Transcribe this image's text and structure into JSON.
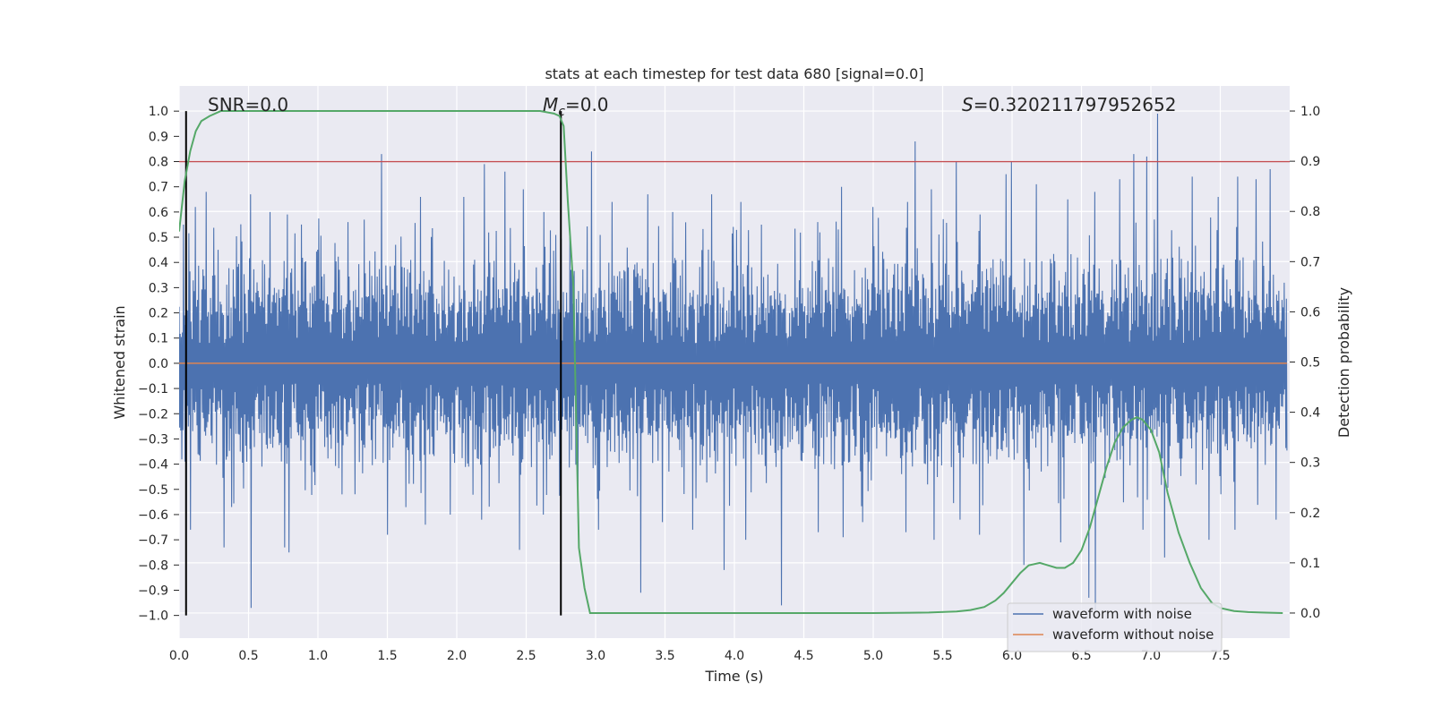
{
  "chart_data": {
    "type": "line",
    "title": "stats at each timestep for test data 680 [signal=0.0]",
    "xlabel": "Time (s)",
    "ylabel_left": "Whitened strain",
    "ylabel_right": "Detection probability",
    "xlim": [
      0.0,
      8.0
    ],
    "ylim_left": [
      -1.09,
      1.1
    ],
    "ylim_right": [
      -0.05,
      1.05
    ],
    "x_ticks": [
      "0.0",
      "0.5",
      "1.0",
      "1.5",
      "2.0",
      "2.5",
      "3.0",
      "3.5",
      "4.0",
      "4.5",
      "5.0",
      "5.5",
      "6.0",
      "6.5",
      "7.0",
      "7.5"
    ],
    "y_left_ticks": [
      "1.0",
      "0.9",
      "0.8",
      "0.7",
      "0.6",
      "0.5",
      "0.4",
      "0.3",
      "0.2",
      "0.1",
      "0.0",
      "−0.1",
      "−0.2",
      "−0.3",
      "−0.4",
      "−0.5",
      "−0.6",
      "−0.7",
      "−0.8",
      "−0.9",
      "−1.0"
    ],
    "y_right_ticks": [
      "1.0",
      "0.9",
      "0.8",
      "0.7",
      "0.6",
      "0.5",
      "0.4",
      "0.3",
      "0.2",
      "0.1",
      "0.0"
    ],
    "annotations": {
      "snr": "SNR=0.0",
      "mc_symbol": "M",
      "mc_sub": "c",
      "mc_value": "=0.0",
      "s_symbol": "S",
      "s_value": "=0.320211797952652"
    },
    "threshold_line": {
      "value": 0.8,
      "color": "#c44e52"
    },
    "vertical_markers": [
      0.05,
      2.75
    ],
    "series": [
      {
        "name": "waveform with noise",
        "color": "#4c72b0",
        "samples": 2048,
        "seed": 680,
        "positive_peaks": [
          [
            0.03,
            0.55
          ],
          [
            0.12,
            0.62
          ],
          [
            0.2,
            0.68
          ],
          [
            0.28,
            0.45
          ],
          [
            0.52,
            0.67
          ],
          [
            0.66,
            0.6
          ],
          [
            0.78,
            0.59
          ],
          [
            1.22,
            0.56
          ],
          [
            1.46,
            0.83
          ],
          [
            1.56,
            0.47
          ],
          [
            1.74,
            0.66
          ],
          [
            2.05,
            0.66
          ],
          [
            2.2,
            0.79
          ],
          [
            2.35,
            0.76
          ],
          [
            2.48,
            0.69
          ],
          [
            2.63,
            0.6
          ],
          [
            2.82,
            0.5
          ],
          [
            2.97,
            0.84
          ],
          [
            3.12,
            0.64
          ],
          [
            3.38,
            0.67
          ],
          [
            3.56,
            0.6
          ],
          [
            3.84,
            0.67
          ],
          [
            4.05,
            0.64
          ],
          [
            4.2,
            0.55
          ],
          [
            4.6,
            0.56
          ],
          [
            4.77,
            0.7
          ],
          [
            5.0,
            0.62
          ],
          [
            5.25,
            0.64
          ],
          [
            5.3,
            0.88
          ],
          [
            5.42,
            0.69
          ],
          [
            5.6,
            0.8
          ],
          [
            5.77,
            0.59
          ],
          [
            5.96,
            0.75
          ],
          [
            6.0,
            0.8
          ],
          [
            6.18,
            0.71
          ],
          [
            6.4,
            0.65
          ],
          [
            6.6,
            0.68
          ],
          [
            6.78,
            0.73
          ],
          [
            6.88,
            0.83
          ],
          [
            6.97,
            0.82
          ],
          [
            7.05,
            0.99
          ],
          [
            7.3,
            0.74
          ],
          [
            7.49,
            0.66
          ],
          [
            7.63,
            0.74
          ],
          [
            7.76,
            0.73
          ],
          [
            7.86,
            0.77
          ]
        ],
        "negative_peaks": [
          [
            0.05,
            -0.87
          ],
          [
            0.08,
            -0.66
          ],
          [
            0.32,
            -0.73
          ],
          [
            0.52,
            -0.97
          ],
          [
            0.76,
            -0.73
          ],
          [
            0.79,
            -0.75
          ],
          [
            1.17,
            -0.52
          ],
          [
            1.5,
            -0.68
          ],
          [
            1.77,
            -0.64
          ],
          [
            1.95,
            -0.6
          ],
          [
            2.18,
            -0.62
          ],
          [
            2.45,
            -0.74
          ],
          [
            2.62,
            -0.6
          ],
          [
            3.02,
            -0.66
          ],
          [
            3.32,
            -0.91
          ],
          [
            3.48,
            -0.63
          ],
          [
            3.7,
            -0.66
          ],
          [
            3.92,
            -0.82
          ],
          [
            4.08,
            -0.7
          ],
          [
            4.34,
            -0.96
          ],
          [
            4.6,
            -0.67
          ],
          [
            4.78,
            -0.69
          ],
          [
            4.92,
            -0.63
          ],
          [
            5.23,
            -0.67
          ],
          [
            5.44,
            -0.7
          ],
          [
            5.62,
            -0.62
          ],
          [
            5.76,
            -0.68
          ],
          [
            6.08,
            -0.8
          ],
          [
            6.35,
            -0.71
          ],
          [
            6.55,
            -0.93
          ],
          [
            6.6,
            -0.98
          ],
          [
            6.94,
            -0.66
          ],
          [
            7.1,
            -0.77
          ],
          [
            7.42,
            -0.7
          ],
          [
            7.6,
            -0.66
          ],
          [
            7.9,
            -0.62
          ]
        ]
      },
      {
        "name": "waveform without noise",
        "color": "#dd8452",
        "values": "constant 0.0"
      },
      {
        "name": "detection probability",
        "color": "#55a868",
        "axis": "right",
        "x": [
          0.0,
          0.04,
          0.08,
          0.12,
          0.16,
          0.22,
          0.3,
          0.4,
          0.6,
          1.0,
          1.5,
          2.0,
          2.4,
          2.6,
          2.7,
          2.74,
          2.77,
          2.8,
          2.84,
          2.88,
          2.92,
          2.96,
          3.0,
          3.2,
          4.0,
          5.0,
          5.4,
          5.6,
          5.7,
          5.8,
          5.88,
          5.94,
          6.0,
          6.06,
          6.12,
          6.2,
          6.26,
          6.32,
          6.38,
          6.44,
          6.5,
          6.56,
          6.62,
          6.68,
          6.74,
          6.8,
          6.86,
          6.9,
          6.94,
          7.0,
          7.06,
          7.12,
          7.2,
          7.28,
          7.36,
          7.44,
          7.5,
          7.6,
          7.7,
          7.8,
          7.95
        ],
        "y": [
          0.76,
          0.86,
          0.92,
          0.96,
          0.98,
          0.99,
          1.0,
          1.0,
          1.0,
          1.0,
          1.0,
          1.0,
          1.0,
          1.0,
          0.995,
          0.99,
          0.97,
          0.82,
          0.65,
          0.13,
          0.05,
          0.0,
          0.0,
          0.0,
          0.0,
          0.0,
          0.001,
          0.003,
          0.006,
          0.012,
          0.025,
          0.04,
          0.06,
          0.08,
          0.095,
          0.1,
          0.095,
          0.09,
          0.09,
          0.1,
          0.125,
          0.17,
          0.23,
          0.29,
          0.34,
          0.37,
          0.385,
          0.39,
          0.385,
          0.365,
          0.32,
          0.24,
          0.16,
          0.1,
          0.05,
          0.02,
          0.01,
          0.004,
          0.002,
          0.001,
          0.0
        ]
      }
    ],
    "legend": {
      "position": "bottom-right",
      "entries": [
        "waveform with noise",
        "waveform without noise"
      ]
    },
    "grid": true
  }
}
